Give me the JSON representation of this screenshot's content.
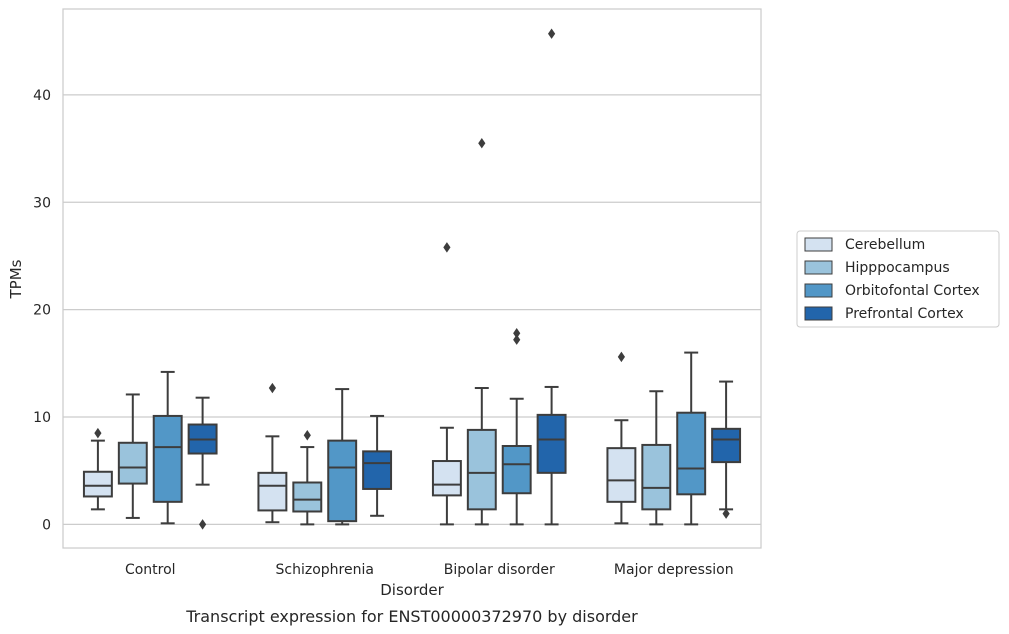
{
  "chart_data": {
    "type": "box",
    "title": "",
    "caption": "Transcript expression for ENST00000372970 by disorder",
    "xlabel": "Disorder",
    "ylabel": "TPMs",
    "ylim": [
      -2.2,
      48
    ],
    "yticks": [
      0,
      10,
      20,
      30,
      40
    ],
    "grid": "horizontal",
    "legend_position": "right-center",
    "categories": [
      "Control",
      "Schizophrenia",
      "Bipolar disorder",
      "Major depression"
    ],
    "series": [
      {
        "name": "Cerebellum",
        "color": "#d4e2f1",
        "boxes": [
          {
            "whisker_low": 1.4,
            "q1": 2.6,
            "median": 3.6,
            "q3": 4.9,
            "whisker_high": 7.8,
            "outliers": [
              8.5
            ]
          },
          {
            "whisker_low": 0.2,
            "q1": 1.3,
            "median": 3.6,
            "q3": 4.8,
            "whisker_high": 8.2,
            "outliers": [
              12.7
            ]
          },
          {
            "whisker_low": 0.0,
            "q1": 2.7,
            "median": 3.7,
            "q3": 5.9,
            "whisker_high": 9.0,
            "outliers": [
              25.8
            ]
          },
          {
            "whisker_low": 0.1,
            "q1": 2.1,
            "median": 4.1,
            "q3": 7.1,
            "whisker_high": 9.7,
            "outliers": [
              15.6
            ]
          }
        ]
      },
      {
        "name": "Hipppocampus",
        "color": "#9ac3dc",
        "boxes": [
          {
            "whisker_low": 0.6,
            "q1": 3.8,
            "median": 5.3,
            "q3": 7.6,
            "whisker_high": 12.1,
            "outliers": []
          },
          {
            "whisker_low": 0.0,
            "q1": 1.2,
            "median": 2.3,
            "q3": 3.9,
            "whisker_high": 7.2,
            "outliers": [
              8.3
            ]
          },
          {
            "whisker_low": 0.0,
            "q1": 1.4,
            "median": 4.8,
            "q3": 8.8,
            "whisker_high": 12.7,
            "outliers": [
              35.5
            ]
          },
          {
            "whisker_low": 0.0,
            "q1": 1.4,
            "median": 3.4,
            "q3": 7.4,
            "whisker_high": 12.4,
            "outliers": []
          }
        ]
      },
      {
        "name": "Orbitofontal Cortex",
        "color": "#5297c7",
        "boxes": [
          {
            "whisker_low": 0.1,
            "q1": 2.1,
            "median": 7.2,
            "q3": 10.1,
            "whisker_high": 14.2,
            "outliers": []
          },
          {
            "whisker_low": 0.0,
            "q1": 0.3,
            "median": 5.3,
            "q3": 7.8,
            "whisker_high": 12.6,
            "outliers": []
          },
          {
            "whisker_low": 0.0,
            "q1": 2.9,
            "median": 5.6,
            "q3": 7.3,
            "whisker_high": 11.7,
            "outliers": [
              17.2,
              17.8
            ]
          },
          {
            "whisker_low": 0.0,
            "q1": 2.8,
            "median": 5.2,
            "q3": 10.4,
            "whisker_high": 16.0,
            "outliers": []
          }
        ]
      },
      {
        "name": "Prefrontal Cortex",
        "color": "#2265ab",
        "boxes": [
          {
            "whisker_low": 3.7,
            "q1": 6.6,
            "median": 7.9,
            "q3": 9.3,
            "whisker_high": 11.8,
            "outliers": [
              0.0
            ]
          },
          {
            "whisker_low": 0.8,
            "q1": 3.3,
            "median": 5.7,
            "q3": 6.8,
            "whisker_high": 10.1,
            "outliers": []
          },
          {
            "whisker_low": 0.0,
            "q1": 4.8,
            "median": 7.9,
            "q3": 10.2,
            "whisker_high": 12.8,
            "outliers": [
              45.7
            ]
          },
          {
            "whisker_low": 1.4,
            "q1": 5.8,
            "median": 7.9,
            "q3": 8.9,
            "whisker_high": 13.3,
            "outliers": [
              1.0
            ]
          }
        ]
      }
    ]
  }
}
